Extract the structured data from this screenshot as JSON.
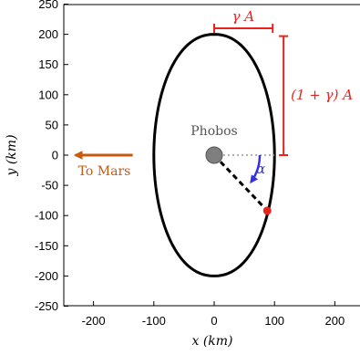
{
  "chart_data": {
    "type": "scatter",
    "title": "",
    "xlabel": "x (km)",
    "ylabel": "y (km)",
    "xlim": [
      -250,
      250
    ],
    "ylim": [
      -250,
      250
    ],
    "xticks": [
      -200,
      -100,
      0,
      100,
      200
    ],
    "yticks": [
      250,
      200,
      150,
      100,
      50,
      0,
      -50,
      -100,
      -150,
      -200,
      -250
    ],
    "grid": false,
    "orbit": {
      "semi_x": 100,
      "semi_y": 200,
      "center": [
        0,
        0
      ],
      "color": "#000000"
    },
    "phobos": {
      "label": "Phobos",
      "x": 0,
      "y": 0,
      "color": "#7f7f7f"
    },
    "point": {
      "x": 88,
      "y": -92,
      "color": "#e8231e"
    },
    "reference_line": {
      "from": [
        0,
        0
      ],
      "to": [
        100,
        0
      ],
      "style": "dotted",
      "color": "#9a9a9a"
    },
    "radius_line": {
      "from": [
        0,
        0
      ],
      "to": [
        88,
        -92
      ],
      "style": "dashed",
      "color": "#000000"
    },
    "angle": {
      "label": "α",
      "color": "#3333dd"
    },
    "annotations": {
      "gamma_a": "γ A",
      "one_plus_gamma_a": "(1 + γ) A",
      "annotation_color": "#e8231e",
      "to_mars": "To Mars",
      "to_mars_color": "#c55a11"
    }
  }
}
